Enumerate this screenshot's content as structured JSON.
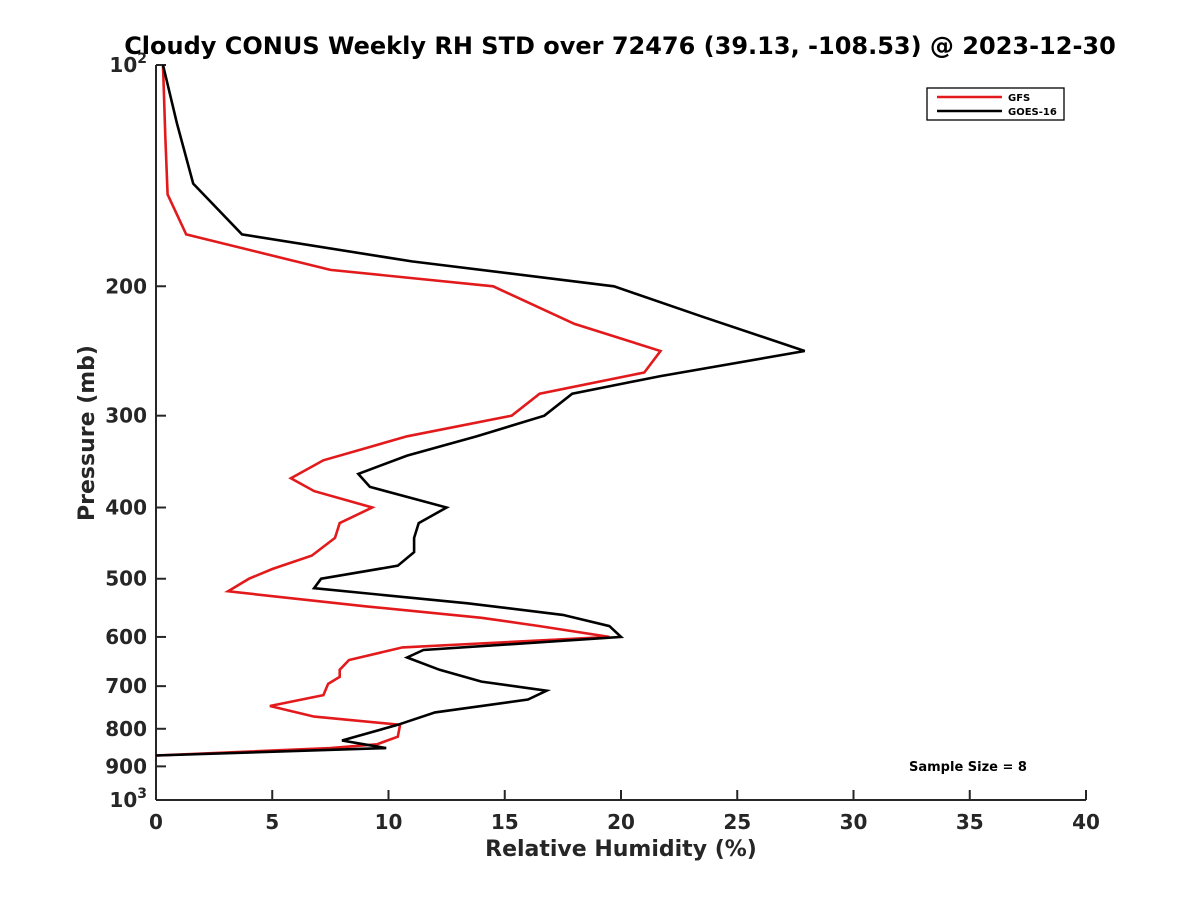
{
  "chart_data": {
    "type": "line",
    "title": "Cloudy CONUS Weekly RH STD over 72476 (39.13, -108.53) @ 2023-12-30",
    "xlabel": "Relative Humidity (%)",
    "ylabel": "Pressure (mb)",
    "xlim": [
      0,
      40
    ],
    "ylim": [
      100,
      1000
    ],
    "y_scale": "log",
    "y_reversed": true,
    "grid": false,
    "legend_position": "top-right",
    "x_ticks": [
      "0",
      "5",
      "10",
      "15",
      "20",
      "25",
      "30",
      "35",
      "40"
    ],
    "y_ticks": [
      {
        "value": 100,
        "base": "10",
        "exp": "2"
      },
      {
        "value": 200,
        "label": "200"
      },
      {
        "value": 300,
        "label": "300"
      },
      {
        "value": 400,
        "label": "400"
      },
      {
        "value": 500,
        "label": "500"
      },
      {
        "value": 600,
        "label": "600"
      },
      {
        "value": 700,
        "label": "700"
      },
      {
        "value": 800,
        "label": "800"
      },
      {
        "value": 900,
        "label": "900"
      },
      {
        "value": 1000,
        "base": "10",
        "exp": "3"
      }
    ],
    "series": [
      {
        "name": "GFS",
        "color": "#e31a1c",
        "points": [
          [
            0.3,
            100
          ],
          [
            0.4,
            125
          ],
          [
            0.5,
            150
          ],
          [
            1.3,
            170
          ],
          [
            7.5,
            190
          ],
          [
            14.5,
            200
          ],
          [
            18.0,
            225
          ],
          [
            21.7,
            245
          ],
          [
            21.0,
            262
          ],
          [
            16.5,
            280
          ],
          [
            15.3,
            300
          ],
          [
            10.8,
            320
          ],
          [
            7.2,
            345
          ],
          [
            5.8,
            365
          ],
          [
            6.8,
            380
          ],
          [
            9.3,
            400
          ],
          [
            7.9,
            420
          ],
          [
            7.7,
            440
          ],
          [
            6.7,
            465
          ],
          [
            5.0,
            485
          ],
          [
            4.0,
            500
          ],
          [
            3.1,
            520
          ],
          [
            9.0,
            545
          ],
          [
            14.0,
            565
          ],
          [
            16.5,
            580
          ],
          [
            19.5,
            600
          ],
          [
            10.6,
            620
          ],
          [
            8.3,
            645
          ],
          [
            7.9,
            665
          ],
          [
            7.9,
            680
          ],
          [
            7.4,
            695
          ],
          [
            7.2,
            720
          ],
          [
            4.9,
            745
          ],
          [
            6.8,
            770
          ],
          [
            10.5,
            790
          ],
          [
            10.4,
            820
          ],
          [
            9.5,
            840
          ],
          [
            7.5,
            850
          ],
          [
            0.0,
            870
          ]
        ]
      },
      {
        "name": "GOES-16",
        "color": "#000000",
        "points": [
          [
            0.3,
            100
          ],
          [
            0.9,
            120
          ],
          [
            1.6,
            145
          ],
          [
            3.7,
            170
          ],
          [
            11.0,
            185
          ],
          [
            19.7,
            200
          ],
          [
            23.5,
            220
          ],
          [
            27.9,
            245
          ],
          [
            21.7,
            265
          ],
          [
            17.9,
            280
          ],
          [
            16.7,
            300
          ],
          [
            13.8,
            320
          ],
          [
            10.8,
            340
          ],
          [
            8.7,
            360
          ],
          [
            9.2,
            375
          ],
          [
            12.5,
            400
          ],
          [
            11.3,
            420
          ],
          [
            11.1,
            440
          ],
          [
            11.1,
            460
          ],
          [
            10.4,
            480
          ],
          [
            7.1,
            500
          ],
          [
            6.8,
            515
          ],
          [
            13.4,
            540
          ],
          [
            17.5,
            560
          ],
          [
            19.5,
            580
          ],
          [
            20.0,
            600
          ],
          [
            11.5,
            625
          ],
          [
            10.8,
            640
          ],
          [
            12.2,
            665
          ],
          [
            14.0,
            690
          ],
          [
            16.8,
            710
          ],
          [
            16.0,
            730
          ],
          [
            12.0,
            760
          ],
          [
            10.4,
            790
          ],
          [
            8.0,
            830
          ],
          [
            9.9,
            850
          ],
          [
            0.0,
            870
          ]
        ]
      }
    ],
    "annotations": [
      {
        "text": "Sample Size = 8",
        "x": 32.8,
        "y": 900
      }
    ]
  }
}
